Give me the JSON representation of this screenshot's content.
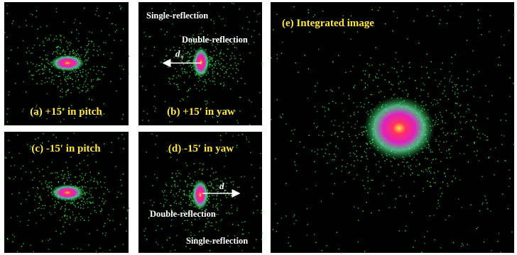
{
  "panels": [
    {
      "caption": "(a) +15′ in pitch"
    },
    {
      "caption": "(b) +15′ in yaw",
      "labels": [
        "Single-reflection",
        "Double-reflection"
      ],
      "distance": {
        "symbol": "d",
        "subscript": "+"
      }
    },
    {
      "caption": "(c) -15′ in pitch"
    },
    {
      "caption": "(d) -15′ in yaw",
      "labels": [
        "Double-reflection",
        "Single-reflection"
      ],
      "distance": {
        "symbol": "d",
        "subscript": "-"
      }
    },
    {
      "caption": "(e) Integrated image"
    }
  ]
}
